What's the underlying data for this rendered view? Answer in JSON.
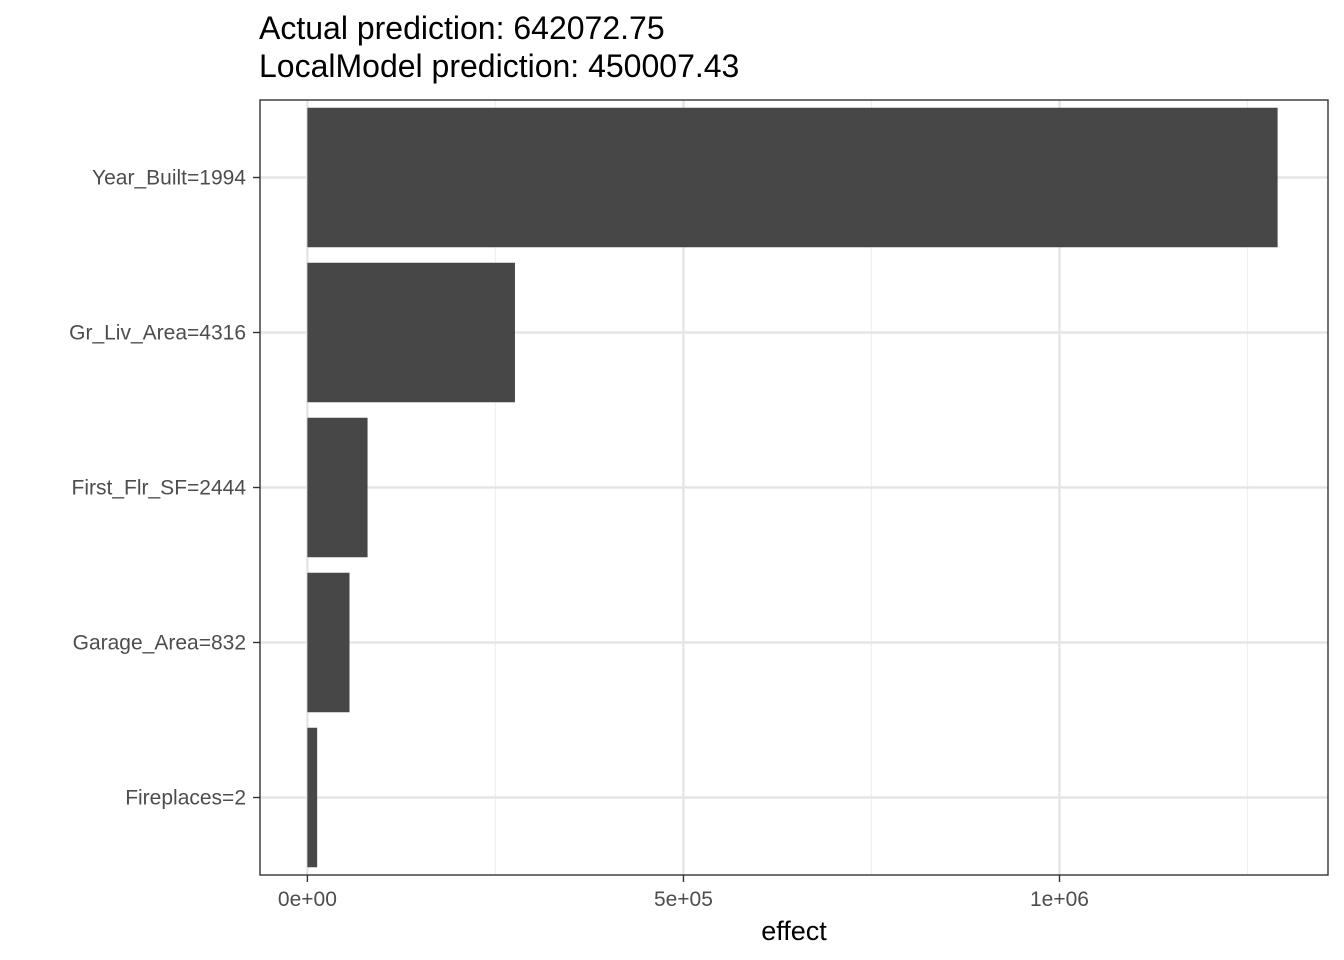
{
  "title_lines": [
    "Actual prediction: 642072.75",
    "LocalModel prediction: 450007.43"
  ],
  "colors": {
    "bar": "#474747",
    "grid_major": "#e5e5e5",
    "grid_minor": "#f0f0f0",
    "panel_border": "#333333"
  },
  "chart_data": {
    "type": "bar",
    "orientation": "horizontal",
    "categories": [
      "Year_Built=1994",
      "Gr_Liv_Area=4316",
      "First_Flr_SF=2444",
      "Garage_Area=832",
      "Fireplaces=2"
    ],
    "values": [
      1290000,
      276000,
      80000,
      56000,
      13000
    ],
    "xlabel": "effect",
    "ylabel": "",
    "xlim": [
      -63000,
      1357000
    ],
    "x_ticks": [
      0,
      500000,
      1000000
    ],
    "x_tick_labels": [
      "0e+00",
      "5e+05",
      "1e+06"
    ],
    "x_minor_ticks": [
      250000,
      750000,
      1250000
    ],
    "grid": true,
    "legend": "none"
  }
}
